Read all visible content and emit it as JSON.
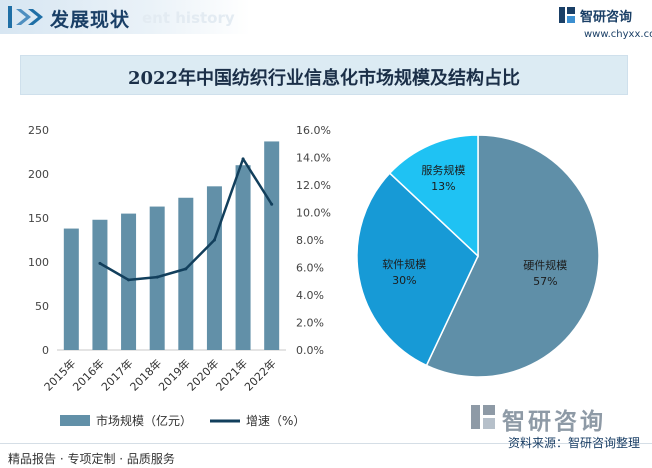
{
  "header": {
    "title": "发展现状",
    "subtitle": "ent history"
  },
  "brand": {
    "name": "智研咨询",
    "url": "www.chyxx.com"
  },
  "chart_title": "2022年中国纺织行业信息化市场规模及结构占比",
  "chart_data": [
    {
      "type": "bar",
      "categories": [
        "2015年",
        "2016年",
        "2017年",
        "2018年",
        "2019年",
        "2020年",
        "2021年",
        "2022年"
      ],
      "series": [
        {
          "name": "市场规模（亿元）",
          "type": "bar",
          "axis": "left",
          "color": "#6290a8",
          "values": [
            138,
            148,
            155,
            163,
            173,
            186,
            210,
            237
          ]
        },
        {
          "name": "增速（%）",
          "type": "line",
          "axis": "right",
          "color": "#123f5c",
          "values": [
            null,
            6.3,
            5.1,
            5.3,
            5.9,
            8.0,
            13.9,
            10.6
          ]
        }
      ],
      "left_axis": {
        "ylim": [
          0,
          250
        ],
        "ticks": [
          "0",
          "50",
          "100",
          "150",
          "200",
          "250"
        ]
      },
      "right_axis": {
        "ylim": [
          0,
          16
        ],
        "ticks": [
          "0.0%",
          "2.0%",
          "4.0%",
          "6.0%",
          "8.0%",
          "10.0%",
          "12.0%",
          "14.0%",
          "16.0%"
        ]
      },
      "legend": "bottom-left",
      "grid": false
    },
    {
      "type": "pie",
      "slices": [
        {
          "label": "硬件规模",
          "value": 57,
          "display": "57%",
          "color": "#5f8fa8"
        },
        {
          "label": "软件规模",
          "value": 30,
          "display": "30%",
          "color": "#179ad6"
        },
        {
          "label": "服务规模",
          "value": 13,
          "display": "13%",
          "color": "#1fc2f3"
        }
      ]
    }
  ],
  "footer": {
    "left": "精品报告 · 专项定制 · 品质服务",
    "source": "资料来源：智研咨询整理"
  },
  "colors": {
    "accent": "#1a3f66",
    "bar": "#6290a8",
    "line": "#123f5c"
  }
}
